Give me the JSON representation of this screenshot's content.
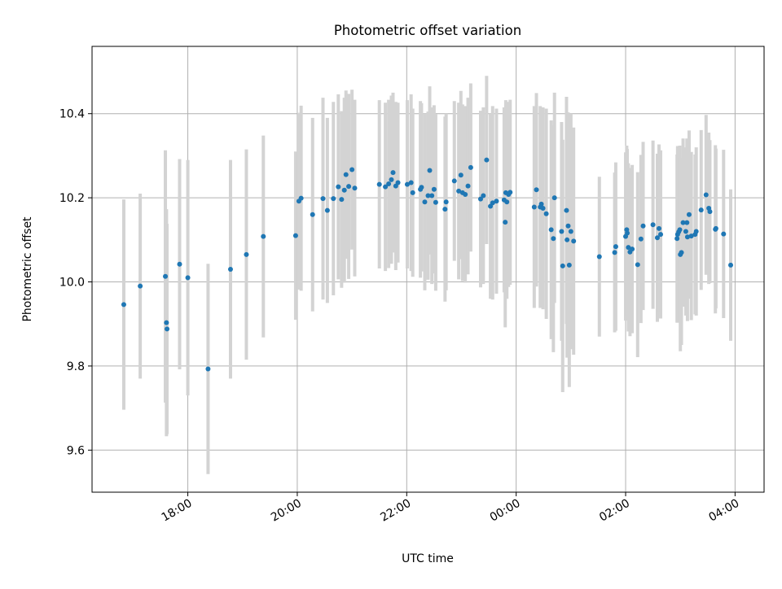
{
  "chart_data": {
    "type": "scatter",
    "title": "Photometric offset variation",
    "xlabel": "UTC time",
    "ylabel": "Photometric offset",
    "x_unit": "UTC time (day-spanning, values in hours; 24+ = next day)",
    "xlim": [
      16.25,
      4.53
    ],
    "ylim": [
      9.5,
      10.56
    ],
    "x_ticks": [
      "18:00",
      "20:00",
      "22:00",
      "00:00",
      "02:00",
      "04:00"
    ],
    "y_ticks": [
      "9.6",
      "9.8",
      "10.0",
      "10.2",
      "10.4"
    ],
    "grid": true,
    "colors": {
      "point": "#1f77b4",
      "errorbar": "#d3d3d3",
      "grid": "#b0b0b0"
    },
    "series": [
      {
        "time": [
          "16:50",
          "17:08",
          "17:35",
          "17:37",
          "17:37",
          "17:51",
          "18:00",
          "18:22",
          "18:47",
          "19:04",
          "19:23",
          "19:58",
          "20:02",
          "20:04",
          "20:17",
          "20:28",
          "20:33",
          "20:40",
          "20:45",
          "20:48",
          "20:51",
          "20:53",
          "20:56",
          "21:00",
          "21:03",
          "21:30",
          "21:37",
          "21:40",
          "21:43",
          "21:45",
          "21:48",
          "21:50",
          "22:01",
          "22:05",
          "22:07",
          "22:15",
          "22:16",
          "22:20",
          "22:23",
          "22:25",
          "22:28",
          "22:30",
          "22:32",
          "22:42",
          "22:43",
          "22:52",
          "22:57",
          "22:59",
          "23:01",
          "23:04",
          "23:07",
          "23:10",
          "23:21",
          "23:24",
          "23:28",
          "23:32",
          "23:34",
          "23:38",
          "23:47",
          "23:48",
          "23:49",
          "23:50",
          "23:52",
          "23:53",
          "00:20",
          "00:22",
          "00:26",
          "00:27",
          "00:29",
          "00:33",
          "00:38",
          "00:41",
          "00:42",
          "00:50",
          "00:51",
          "00:55",
          "00:56",
          "00:57",
          "00:58",
          "01:00",
          "01:03",
          "01:31",
          "01:48",
          "01:49",
          "02:00",
          "02:01",
          "02:02",
          "02:03",
          "02:05",
          "02:07",
          "02:13",
          "02:17",
          "02:19",
          "02:30",
          "02:35",
          "02:37",
          "02:38",
          "02:56",
          "02:57",
          "02:58",
          "02:59",
          "03:00",
          "03:01",
          "03:03",
          "03:06",
          "03:07",
          "03:08",
          "03:10",
          "03:12",
          "03:16",
          "03:17",
          "03:23",
          "03:28",
          "03:31",
          "03:32",
          "03:38",
          "03:39",
          "03:47",
          "03:55"
        ],
        "x": [
          16.83,
          17.13,
          17.59,
          17.61,
          17.62,
          17.85,
          18.0,
          18.37,
          18.78,
          19.07,
          19.38,
          19.97,
          20.03,
          20.07,
          20.28,
          20.47,
          20.55,
          20.66,
          20.75,
          20.81,
          20.86,
          20.89,
          20.94,
          21.0,
          21.05,
          21.5,
          21.61,
          21.67,
          21.72,
          21.75,
          21.8,
          21.84,
          22.01,
          22.08,
          22.11,
          22.25,
          22.27,
          22.33,
          22.39,
          22.42,
          22.46,
          22.5,
          22.53,
          22.7,
          22.72,
          22.87,
          22.95,
          22.99,
          23.02,
          23.07,
          23.12,
          23.17,
          23.35,
          23.4,
          23.46,
          23.53,
          23.57,
          23.64,
          23.78,
          23.8,
          23.81,
          23.83,
          23.86,
          23.89,
          24.33,
          24.37,
          24.44,
          24.46,
          24.49,
          24.55,
          24.64,
          24.68,
          24.7,
          24.83,
          24.85,
          24.92,
          24.93,
          24.95,
          24.97,
          25.0,
          25.05,
          25.52,
          25.8,
          25.82,
          26.0,
          26.02,
          26.03,
          26.05,
          26.08,
          26.12,
          26.22,
          26.28,
          26.32,
          26.5,
          26.58,
          26.61,
          26.64,
          26.94,
          26.95,
          26.97,
          26.99,
          27.0,
          27.02,
          27.05,
          27.1,
          27.12,
          27.13,
          27.16,
          27.2,
          27.27,
          27.29,
          27.38,
          27.47,
          27.52,
          27.54,
          27.64,
          27.65,
          27.79,
          27.92
        ],
        "y": [
          9.946,
          9.99,
          10.013,
          9.903,
          9.888,
          10.042,
          10.01,
          9.793,
          10.03,
          10.065,
          10.108,
          10.11,
          10.192,
          10.199,
          10.16,
          10.198,
          10.17,
          10.198,
          10.226,
          10.196,
          10.218,
          10.255,
          10.227,
          10.267,
          10.223,
          10.232,
          10.226,
          10.233,
          10.243,
          10.26,
          10.228,
          10.236,
          10.232,
          10.236,
          10.212,
          10.22,
          10.225,
          10.19,
          10.205,
          10.265,
          10.205,
          10.22,
          10.189,
          10.173,
          10.19,
          10.24,
          10.216,
          10.254,
          10.212,
          10.208,
          10.228,
          10.272,
          10.197,
          10.205,
          10.29,
          10.18,
          10.188,
          10.192,
          10.195,
          10.142,
          10.212,
          10.19,
          10.208,
          10.213,
          10.178,
          10.219,
          10.178,
          10.185,
          10.175,
          10.162,
          10.124,
          10.103,
          10.2,
          10.12,
          10.038,
          10.17,
          10.1,
          10.133,
          10.04,
          10.12,
          10.097,
          10.06,
          10.07,
          10.084,
          10.108,
          10.124,
          10.116,
          10.082,
          10.071,
          10.078,
          10.041,
          10.102,
          10.133,
          10.136,
          10.105,
          10.127,
          10.113,
          10.103,
          10.113,
          10.119,
          10.124,
          10.065,
          10.07,
          10.141,
          10.12,
          10.141,
          10.107,
          10.16,
          10.109,
          10.113,
          10.12,
          10.171,
          10.207,
          10.175,
          10.167,
          10.125,
          10.127,
          10.114,
          10.04
        ],
        "yerr": [
          0.25,
          0.22,
          0.3,
          0.27,
          0.25,
          0.25,
          0.28,
          0.25,
          0.26,
          0.25,
          0.24,
          0.2,
          0.21,
          0.22,
          0.23,
          0.24,
          0.22,
          0.23,
          0.22,
          0.21,
          0.22,
          0.2,
          0.22,
          0.19,
          0.21,
          0.2,
          0.2,
          0.2,
          0.2,
          0.19,
          0.2,
          0.19,
          0.2,
          0.21,
          0.2,
          0.21,
          0.2,
          0.21,
          0.2,
          0.2,
          0.21,
          0.2,
          0.21,
          0.22,
          0.21,
          0.19,
          0.21,
          0.2,
          0.21,
          0.21,
          0.21,
          0.2,
          0.21,
          0.21,
          0.2,
          0.22,
          0.23,
          0.22,
          0.22,
          0.25,
          0.22,
          0.23,
          0.22,
          0.22,
          0.24,
          0.23,
          0.24,
          0.23,
          0.24,
          0.25,
          0.26,
          0.27,
          0.25,
          0.26,
          0.3,
          0.27,
          0.28,
          0.27,
          0.29,
          0.28,
          0.27,
          0.19,
          0.19,
          0.2,
          0.2,
          0.2,
          0.2,
          0.2,
          0.2,
          0.2,
          0.22,
          0.2,
          0.2,
          0.2,
          0.2,
          0.2,
          0.2,
          0.2,
          0.21,
          0.2,
          0.2,
          0.23,
          0.22,
          0.2,
          0.2,
          0.2,
          0.2,
          0.2,
          0.2,
          0.19,
          0.2,
          0.19,
          0.19,
          0.18,
          0.17,
          0.2,
          0.19,
          0.2,
          0.18
        ]
      }
    ]
  }
}
